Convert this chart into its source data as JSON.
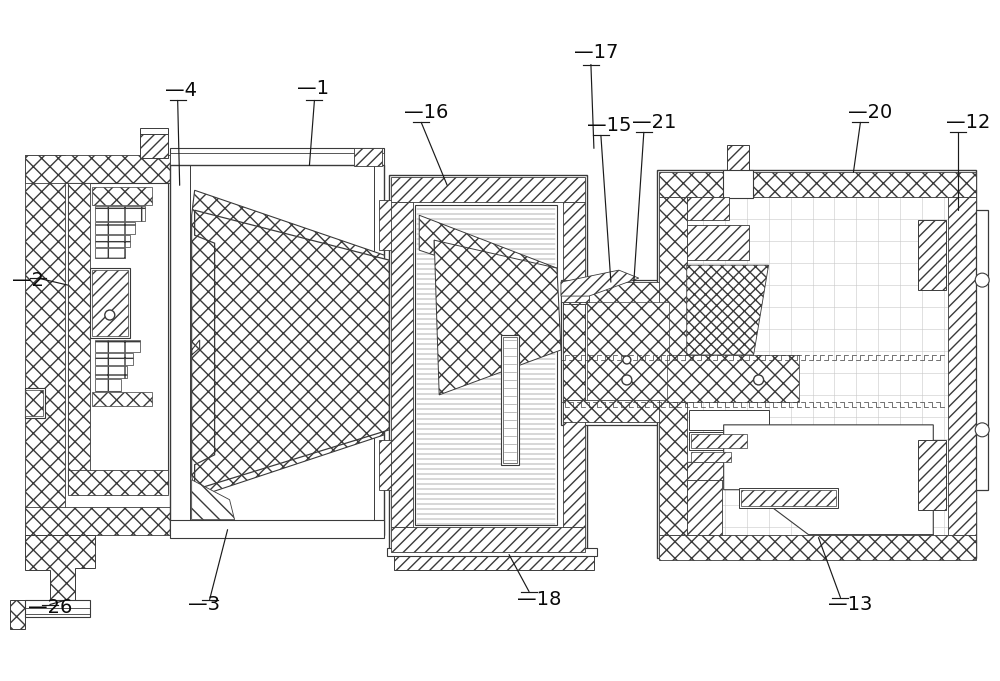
{
  "bg_color": "#ffffff",
  "line_color": "#3a3a3a",
  "label_color": "#000000",
  "figsize": [
    10.0,
    6.81
  ],
  "dpi": 100
}
